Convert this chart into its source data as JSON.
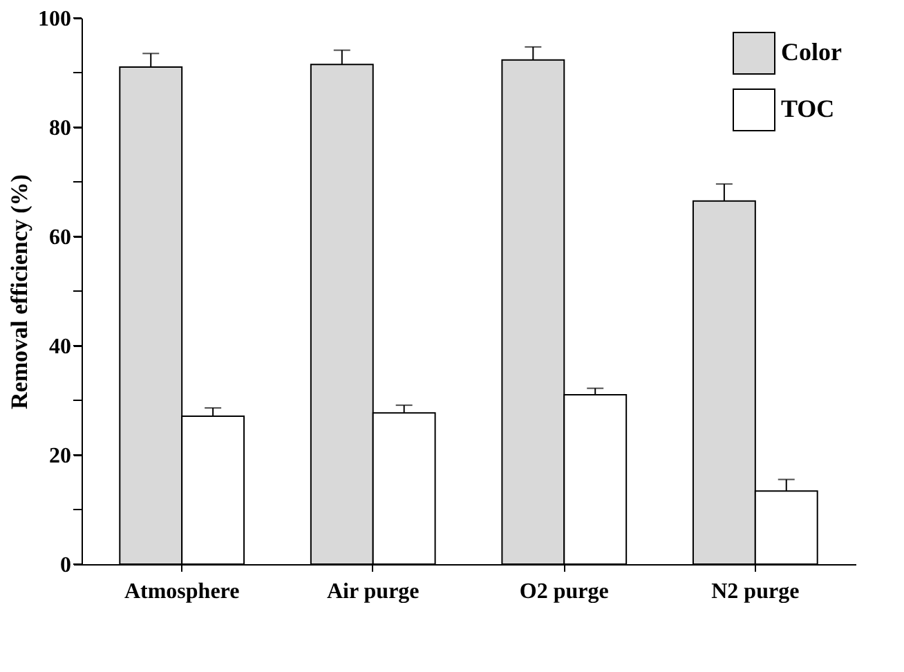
{
  "chart_data": {
    "type": "bar",
    "ylabel": "Removal efficiency (%)",
    "categories": [
      "Atmosphere",
      "Air purge",
      "O2 purge",
      "N2 purge"
    ],
    "series": [
      {
        "name": "Color",
        "color": "#d9d9d9",
        "values": [
          91.0,
          91.5,
          92.3,
          66.5
        ],
        "errors": [
          [
            91.0,
            93.5
          ],
          [
            91.5,
            94.1
          ],
          [
            92.3,
            94.7
          ],
          [
            66.5,
            69.6
          ]
        ]
      },
      {
        "name": "TOC",
        "color": "#ffffff",
        "values": [
          27.1,
          27.7,
          31.0,
          13.4
        ],
        "errors": [
          [
            27.1,
            28.6
          ],
          [
            27.7,
            29.1
          ],
          [
            31.0,
            32.2
          ],
          [
            13.4,
            15.5
          ]
        ]
      }
    ],
    "ylim": [
      0,
      100
    ],
    "yticks": [
      0,
      {
        "value": 10,
        "label": null
      },
      20,
      {
        "value": 30,
        "label": null
      },
      40,
      {
        "value": 50,
        "label": null
      },
      60,
      {
        "value": 70,
        "label": null
      },
      80,
      {
        "value": 90,
        "label": null
      },
      100
    ],
    "grid": false,
    "legend": "top right"
  }
}
